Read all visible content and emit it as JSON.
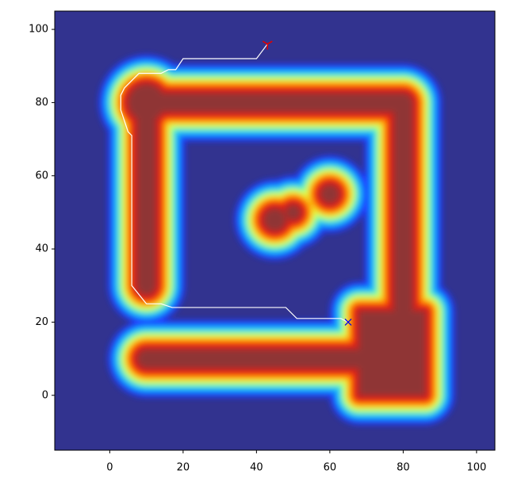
{
  "chart_data": {
    "type": "line",
    "xlim": [
      -15,
      105
    ],
    "ylim": [
      -15,
      105
    ],
    "xticks": [
      0,
      20,
      40,
      60,
      80,
      100
    ],
    "yticks": [
      0,
      20,
      40,
      60,
      80,
      100
    ],
    "background": "#32338f",
    "obstacles": [
      {
        "kind": "segment",
        "x": [
          10,
          80
        ],
        "y": [
          80,
          80
        ]
      },
      {
        "kind": "segment",
        "x": [
          80,
          80
        ],
        "y": [
          80,
          22
        ]
      },
      {
        "kind": "segment",
        "x": [
          10,
          10
        ],
        "y": [
          80,
          30
        ]
      },
      {
        "kind": "segment",
        "x": [
          10,
          68
        ],
        "y": [
          10,
          10
        ]
      },
      {
        "kind": "circle",
        "x": 10,
        "y": 80,
        "r": 5
      },
      {
        "kind": "rect",
        "x": [
          68,
          86
        ],
        "y": [
          0,
          23
        ]
      },
      {
        "kind": "circle",
        "x": 45,
        "y": 48,
        "r": 3
      },
      {
        "kind": "circle",
        "x": 50,
        "y": 50,
        "r": 2
      },
      {
        "kind": "circle",
        "x": 60,
        "y": 55,
        "r": 2.5
      }
    ],
    "series": [
      {
        "color": "#ffffff",
        "x": [
          43,
          40,
          20,
          18,
          16,
          14,
          8,
          6,
          4,
          3,
          3,
          4,
          5,
          6,
          6,
          10,
          14,
          17,
          48,
          51,
          63,
          65
        ],
        "values": [
          96,
          92,
          92,
          89,
          89,
          88,
          88,
          86,
          84,
          82,
          78,
          75,
          72,
          71,
          30,
          25,
          25,
          24,
          24,
          21,
          21,
          20
        ]
      }
    ],
    "start": {
      "x": 43,
      "y": 96,
      "color": "#e00000"
    },
    "goal": {
      "x": 65,
      "y": 20,
      "color": "#0000ee"
    }
  }
}
